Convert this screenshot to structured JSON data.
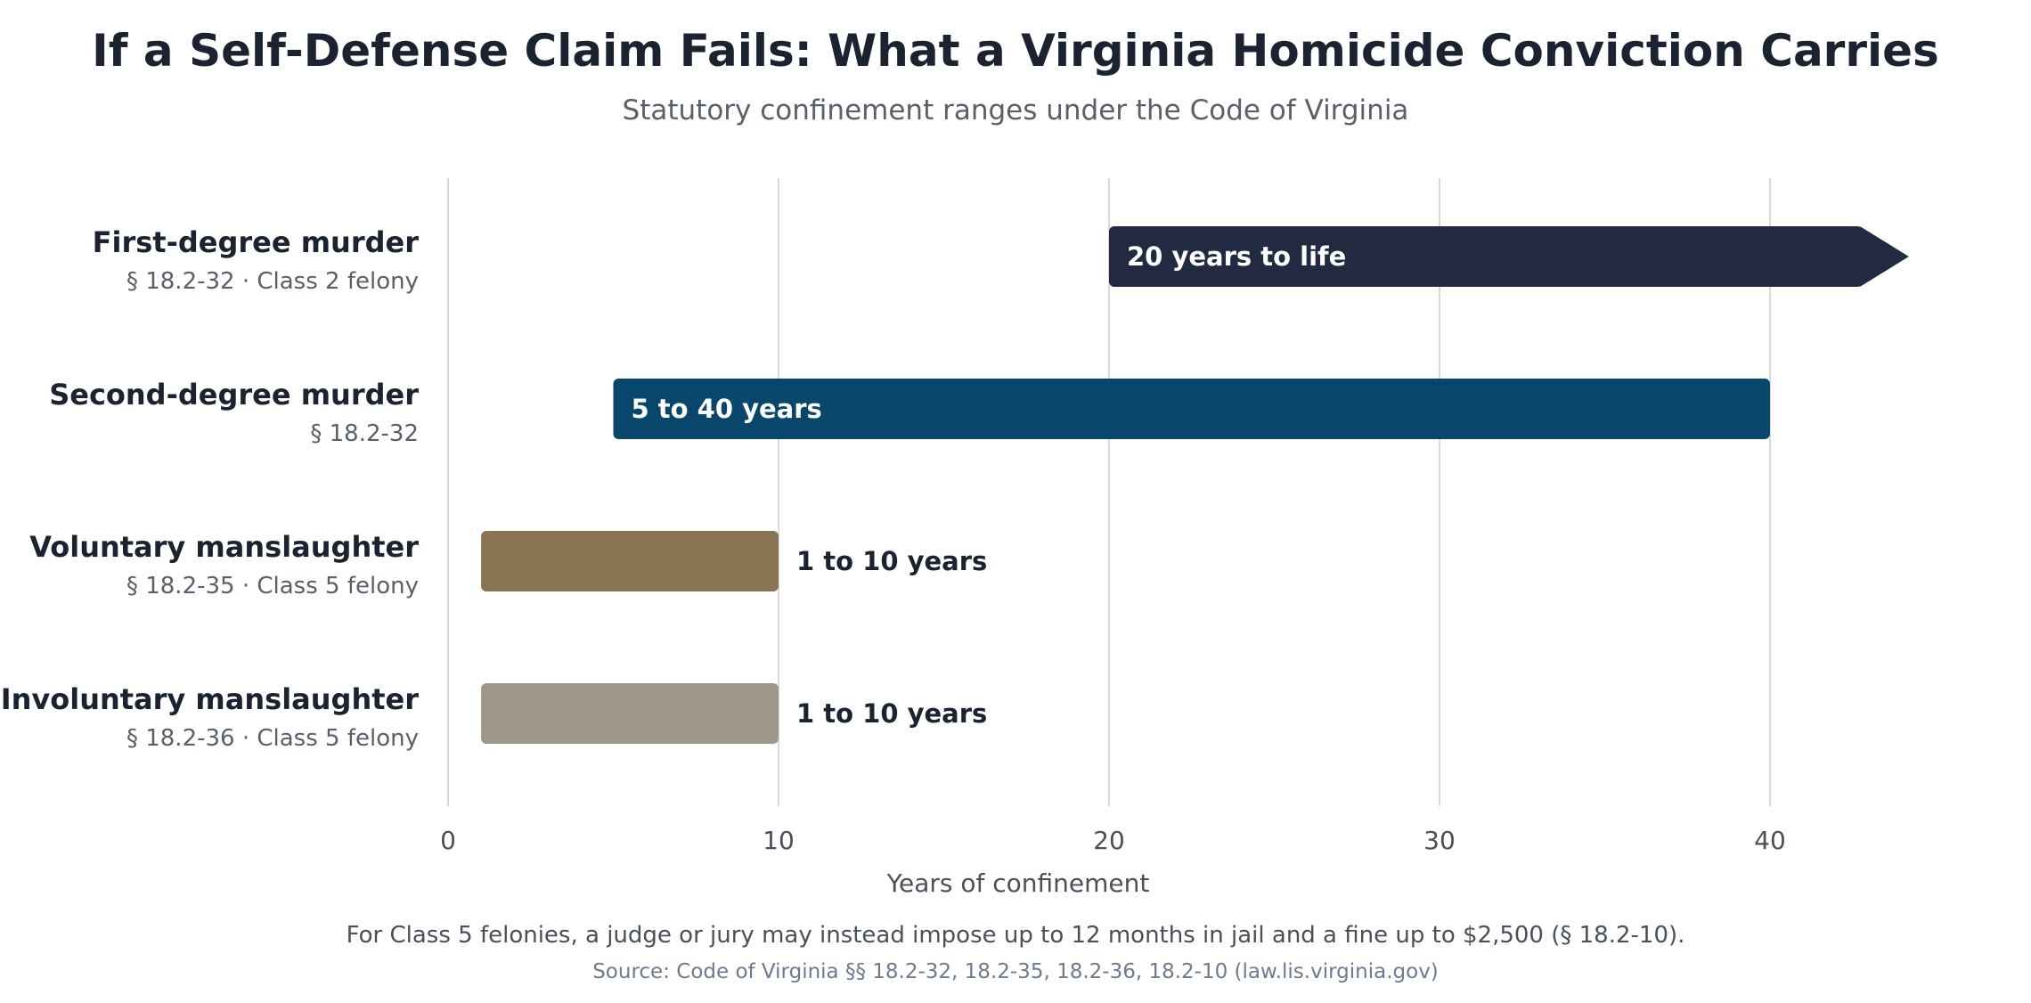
{
  "chart_data": {
    "type": "bar",
    "orientation": "horizontal",
    "title": "If a Self-Defense Claim Fails: What a Virginia Homicide Conviction Carries",
    "subtitle": "Statutory confinement ranges under the Code of Virginia",
    "xlabel": "Years of confinement",
    "ylabel": "",
    "xlim": [
      0,
      45
    ],
    "x_ticks": [
      0,
      10,
      20,
      30,
      40
    ],
    "grid": true,
    "legend": "none",
    "categories": [
      "First-degree murder",
      "Second-degree murder",
      "Voluntary manslaughter",
      "Involuntary manslaughter"
    ],
    "subcategories": [
      "§ 18.2-32 · Class 2 felony",
      "§ 18.2-32",
      "§ 18.2-35 · Class 5 felony",
      "§ 18.2-36 · Class 5 felony"
    ],
    "series": [
      {
        "ranges": [
          {
            "min": 20,
            "max": null,
            "open_ended": true,
            "label": "20 years to life",
            "label_position": "inside",
            "color": "#212a40"
          },
          {
            "min": 5,
            "max": 40,
            "open_ended": false,
            "label": "5 to 40 years",
            "label_position": "inside",
            "color": "#08466c"
          },
          {
            "min": 1,
            "max": 10,
            "open_ended": false,
            "label": "1 to 10 years",
            "label_position": "outside",
            "color": "#8a7454"
          },
          {
            "min": 1,
            "max": 10,
            "open_ended": false,
            "label": "1 to 10 years",
            "label_position": "outside",
            "color": "#9e968a"
          }
        ]
      }
    ],
    "footnote": "For Class 5 felonies, a judge or jury may instead impose up to 12 months in jail and a fine up to $2,500 (§ 18.2-10).",
    "source": "Source: Code of Virginia §§ 18.2-32, 18.2-35, 18.2-36, 18.2-10 (law.lis.virginia.gov)"
  },
  "colors": {
    "title": "#1b2230",
    "grid": "#d9d9d9",
    "label_dark": "#1b2230",
    "label_light": "#ffffff"
  }
}
